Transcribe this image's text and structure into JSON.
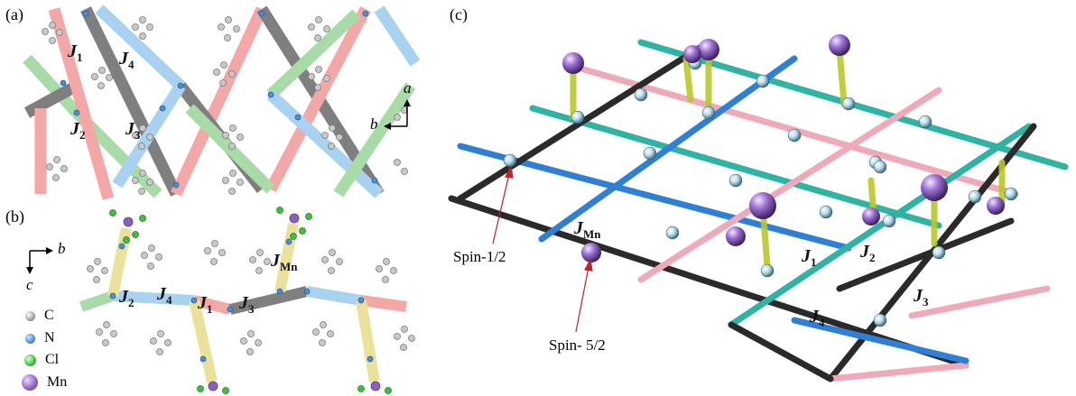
{
  "panels": {
    "a": {
      "label": "(a)"
    },
    "b": {
      "label": "(b)"
    },
    "c": {
      "label": "(c)"
    }
  },
  "exchange": {
    "J1": "J",
    "J1_sub": "1",
    "J2": "J",
    "J2_sub": "2",
    "J3": "J",
    "J3_sub": "3",
    "J4": "J",
    "J4_sub": "4",
    "JMn": "J",
    "JMn_sub": "Mn"
  },
  "axes": {
    "a": "a",
    "b": "b",
    "c": "c"
  },
  "legend": [
    {
      "label": "C",
      "color": "#bdbdbd"
    },
    {
      "label": "N",
      "color": "#4a8fd6"
    },
    {
      "label": "Cl",
      "color": "#3fbf3f"
    },
    {
      "label": "Mn",
      "color": "#9b6fc9"
    }
  ],
  "spins": {
    "spin_half": "Spin-1/2",
    "spin_five_half": "Spin- 5/2"
  },
  "colors": {
    "J1": "#f08a8a",
    "J2": "#555555",
    "J3": "#8ccf8c",
    "J4": "#8cc4ea",
    "teal": "#2fb3a3",
    "blue": "#2f7fd6",
    "pink": "#f0a9b8",
    "black": "#2a2a2a",
    "mnBond": "#d9df3a",
    "mnAtom": "#8a5fc0"
  }
}
